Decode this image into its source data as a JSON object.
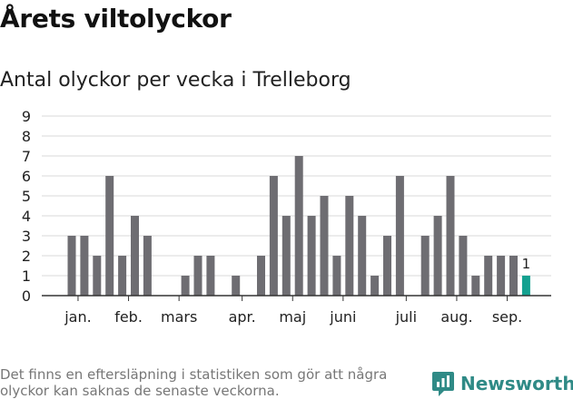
{
  "title": "Årets viltolyckor",
  "subtitle": "Antal olyckor per vecka i Trelleborg",
  "footnote": "Det finns en eftersläpning i statistiken som gör att några olyckor kan saknas de senaste veckorna.",
  "brand": {
    "name": "Newsworthy",
    "icon": "newsworthy-logo-icon"
  },
  "colors": {
    "bar": "#6e6d72",
    "highlight": "#13a190",
    "grid": "#d9d9d9",
    "axis": "#333333",
    "brand": "#2f8a86"
  },
  "chart_data": {
    "type": "bar",
    "title": "Antal olyckor per vecka i Trelleborg",
    "xlabel": "",
    "ylabel": "",
    "ylim": [
      0,
      9
    ],
    "yticks": [
      0,
      1,
      2,
      3,
      4,
      5,
      6,
      7,
      8,
      9
    ],
    "grid": true,
    "values": [
      3,
      3,
      2,
      6,
      2,
      4,
      3,
      0,
      0,
      1,
      2,
      2,
      0,
      1,
      0,
      2,
      6,
      4,
      7,
      4,
      5,
      2,
      5,
      4,
      1,
      3,
      6,
      0,
      3,
      4,
      6,
      3,
      1,
      2,
      2,
      2,
      1
    ],
    "highlight_index": 36,
    "highlight_label": "1",
    "month_labels": [
      {
        "label": "jan.",
        "at_bar": 0.5
      },
      {
        "label": "feb.",
        "at_bar": 4.5
      },
      {
        "label": "mars",
        "at_bar": 8.5
      },
      {
        "label": "apr.",
        "at_bar": 13.5
      },
      {
        "label": "maj",
        "at_bar": 17.5
      },
      {
        "label": "juni",
        "at_bar": 21.5
      },
      {
        "label": "juli",
        "at_bar": 26.5
      },
      {
        "label": "aug.",
        "at_bar": 30.5
      },
      {
        "label": "sep.",
        "at_bar": 34.5
      }
    ]
  }
}
